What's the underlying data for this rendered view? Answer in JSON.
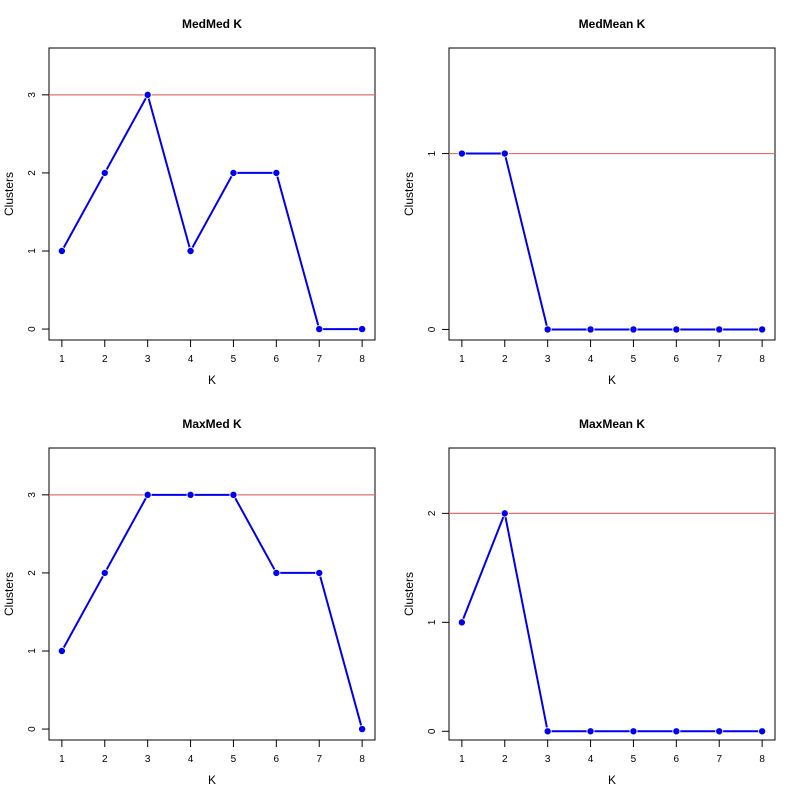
{
  "colors": {
    "series": "#0000ee",
    "reference": "#e07070",
    "frame": "#000000"
  },
  "chart_data": [
    {
      "type": "line",
      "title": "MedMed K",
      "xlabel": "K",
      "ylabel": "Clusters",
      "x": [
        1,
        2,
        3,
        4,
        5,
        6,
        7,
        8
      ],
      "y": [
        1,
        2,
        3,
        1,
        2,
        2,
        0,
        0
      ],
      "reference_line": 3,
      "xlim": [
        0.7,
        8.3
      ],
      "ylim": [
        -0.14,
        3.6
      ],
      "xticks": [
        1,
        2,
        3,
        4,
        5,
        6,
        7,
        8
      ],
      "yticks": [
        0,
        1,
        2,
        3
      ]
    },
    {
      "type": "line",
      "title": "MedMean K",
      "xlabel": "K",
      "ylabel": "Clusters",
      "x": [
        1,
        2,
        3,
        4,
        5,
        6,
        7,
        8
      ],
      "y": [
        1,
        1,
        0,
        0,
        0,
        0,
        0,
        0
      ],
      "reference_line": 1,
      "xlim": [
        0.7,
        8.3
      ],
      "ylim": [
        -0.06,
        1.6
      ],
      "xticks": [
        1,
        2,
        3,
        4,
        5,
        6,
        7,
        8
      ],
      "yticks": [
        0,
        1
      ]
    },
    {
      "type": "line",
      "title": "MaxMed K",
      "xlabel": "K",
      "ylabel": "Clusters",
      "x": [
        1,
        2,
        3,
        4,
        5,
        6,
        7,
        8
      ],
      "y": [
        1,
        2,
        3,
        3,
        3,
        2,
        2,
        0
      ],
      "reference_line": 3,
      "xlim": [
        0.7,
        8.3
      ],
      "ylim": [
        -0.14,
        3.6
      ],
      "xticks": [
        1,
        2,
        3,
        4,
        5,
        6,
        7,
        8
      ],
      "yticks": [
        0,
        1,
        2,
        3
      ]
    },
    {
      "type": "line",
      "title": "MaxMean K",
      "xlabel": "K",
      "ylabel": "Clusters",
      "x": [
        1,
        2,
        3,
        4,
        5,
        6,
        7,
        8
      ],
      "y": [
        1,
        2,
        0,
        0,
        0,
        0,
        0,
        0
      ],
      "reference_line": 2,
      "xlim": [
        0.7,
        8.3
      ],
      "ylim": [
        -0.08,
        2.6
      ],
      "xticks": [
        1,
        2,
        3,
        4,
        5,
        6,
        7,
        8
      ],
      "yticks": [
        0,
        1,
        2
      ]
    }
  ]
}
